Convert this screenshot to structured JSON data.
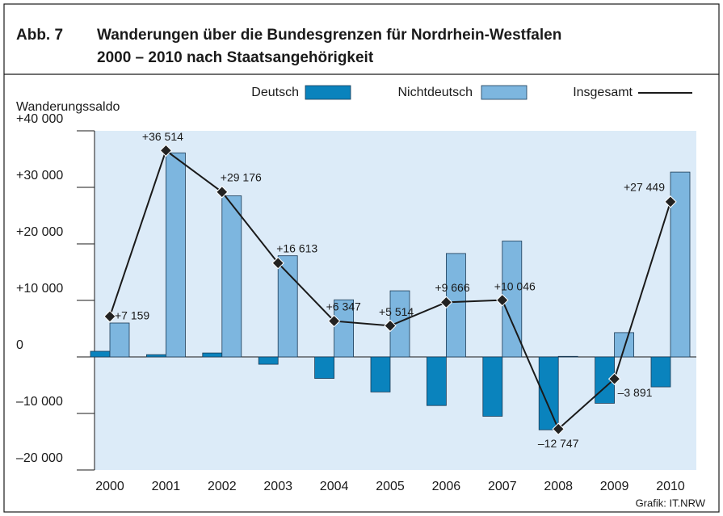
{
  "chart_data": {
    "type": "combo",
    "figure_label": "Abb. 7",
    "title_lines": [
      "Wanderungen über die Bundesgrenzen für Nordrhein-Westfalen",
      "2000 – 2010 nach Staatsangehörigkeit"
    ],
    "ylabel": "Wanderungssaldo",
    "source": "Grafik: IT.NRW",
    "categories": [
      "2000",
      "2001",
      "2002",
      "2003",
      "2004",
      "2005",
      "2006",
      "2007",
      "2008",
      "2009",
      "2010"
    ],
    "series": [
      {
        "name": "Deutsch",
        "type": "bar",
        "color": "#0a83bd",
        "values": [
          1000,
          400,
          700,
          -1300,
          -3800,
          -6200,
          -8600,
          -10500,
          -12900,
          -8200,
          -5300
        ]
      },
      {
        "name": "Nichtdeutsch",
        "type": "bar",
        "color": "#7db6df",
        "values": [
          6000,
          36100,
          28500,
          17900,
          10100,
          11700,
          18300,
          20500,
          100,
          4300,
          32700
        ]
      },
      {
        "name": "Insgesamt",
        "type": "line",
        "color": "#1a1a1a",
        "values": [
          7159,
          36514,
          29176,
          16613,
          6347,
          5514,
          9666,
          10046,
          -12747,
          -3891,
          27449
        ],
        "value_labels": [
          "+7 159",
          "+36 514",
          "+29 176",
          "+16 613",
          "+6 347",
          "+5 514",
          "+9 666",
          "+10 046",
          "–12 747",
          "–3 891",
          "+27 449"
        ]
      }
    ],
    "ylim": [
      -20000,
      40000
    ],
    "yticks": [
      {
        "value": -20000,
        "label": "–20 000"
      },
      {
        "value": -10000,
        "label": "–10 000"
      },
      0,
      {
        "value": 10000,
        "label": "+10 000"
      },
      {
        "value": 20000,
        "label": "+20 000"
      },
      {
        "value": 30000,
        "label": "+30 000"
      },
      {
        "value": 40000,
        "label": "+40 000"
      }
    ],
    "plot_background": "#dcebf8"
  }
}
